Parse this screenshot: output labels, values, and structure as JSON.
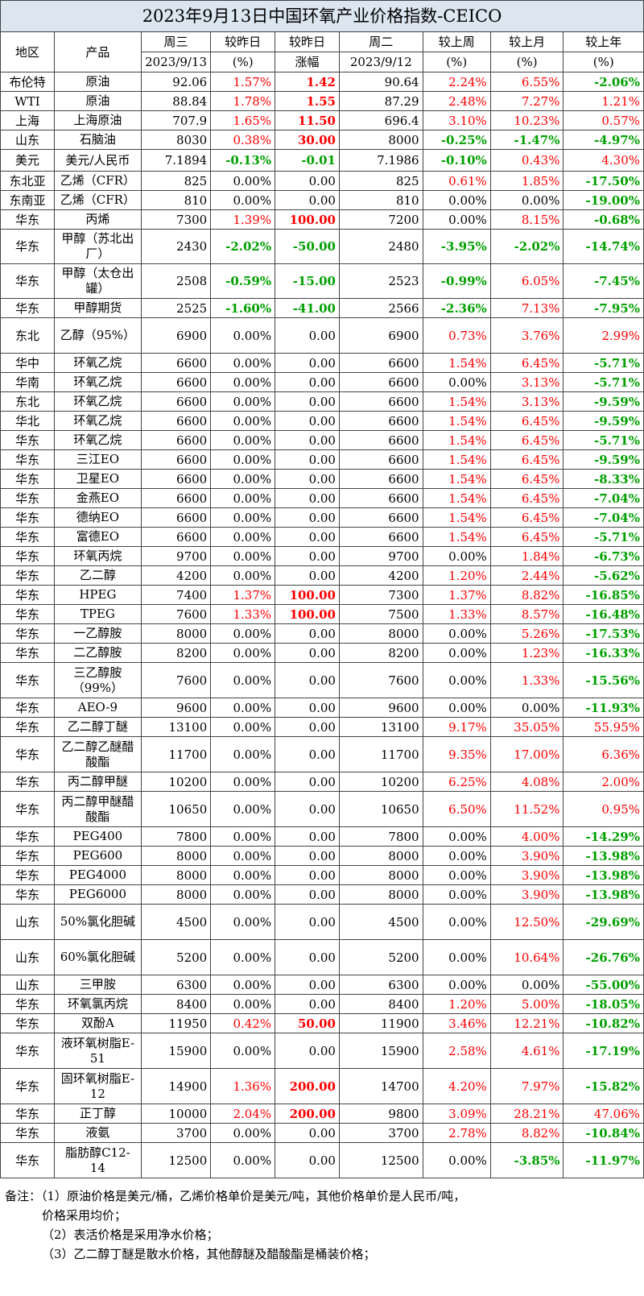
{
  "title": "2023年9月13日中国环氧产业价格指数-CEICO",
  "headers": {
    "region": "地区",
    "product": "产品",
    "today": "周三",
    "today_date": "2023/9/13",
    "chg_pct": "较昨日",
    "chg_pct_unit": "(%)",
    "chg_abs": "较昨日",
    "chg_abs_unit": "涨幅",
    "prev": "周二",
    "prev_date": "2023/9/12",
    "week": "较上周",
    "week_unit": "(%)",
    "month": "较上月",
    "month_unit": "(%)",
    "year": "较上年",
    "year_unit": "(%)"
  },
  "colors": {
    "up": "#ff0000",
    "down": "#00a000",
    "title_bg": "#dbe6f1"
  },
  "rows": [
    {
      "region": "布伦特",
      "product": "原油",
      "today": "92.06",
      "pct": "1.57%",
      "abs": "1.42",
      "prev": "90.64",
      "week": "2.24%",
      "month": "6.55%",
      "year": "-2.06%",
      "h": 24
    },
    {
      "region": "WTI",
      "product": "原油",
      "today": "88.84",
      "pct": "1.78%",
      "abs": "1.55",
      "prev": "87.29",
      "week": "2.48%",
      "month": "7.27%",
      "year": "1.21%",
      "h": 24
    },
    {
      "region": "上海",
      "product": "上海原油",
      "today": "707.9",
      "pct": "1.65%",
      "abs": "11.50",
      "prev": "696.4",
      "week": "3.10%",
      "month": "10.23%",
      "year": "0.57%",
      "h": 24
    },
    {
      "region": "山东",
      "product": "石脑油",
      "today": "8030",
      "pct": "0.38%",
      "abs": "30.00",
      "prev": "8000",
      "week": "-0.25%",
      "month": "-1.47%",
      "year": "-4.97%",
      "h": 24
    },
    {
      "region": "美元",
      "product": "美元/人民币",
      "today": "7.1894",
      "pct": "-0.13%",
      "abs": "-0.01",
      "prev": "7.1986",
      "week": "-0.10%",
      "month": "0.43%",
      "year": "4.30%",
      "h": 27
    },
    {
      "region": "东北亚",
      "product": "乙烯（CFR）",
      "today": "825",
      "pct": "0.00%",
      "abs": "0.00",
      "prev": "825",
      "week": "0.61%",
      "month": "1.85%",
      "year": "-17.50%",
      "h": 24
    },
    {
      "region": "东南亚",
      "product": "乙烯（CFR）",
      "today": "810",
      "pct": "0.00%",
      "abs": "0.00",
      "prev": "810",
      "week": "0.00%",
      "month": "0.00%",
      "year": "-19.00%",
      "h": 24
    },
    {
      "region": "华东",
      "product": "丙烯",
      "today": "7300",
      "pct": "1.39%",
      "abs": "100.00",
      "prev": "7200",
      "week": "0.00%",
      "month": "8.15%",
      "year": "-0.68%",
      "h": 24
    },
    {
      "region": "华东",
      "product": "甲醇（苏北出厂）",
      "today": "2430",
      "pct": "-2.02%",
      "abs": "-50.00",
      "prev": "2480",
      "week": "-3.95%",
      "month": "-2.02%",
      "year": "-14.74%",
      "h": 43
    },
    {
      "region": "华东",
      "product": "甲醇（太仓出罐）",
      "today": "2508",
      "pct": "-0.59%",
      "abs": "-15.00",
      "prev": "2523",
      "week": "-0.99%",
      "month": "6.05%",
      "year": "-7.45%",
      "h": 43
    },
    {
      "region": "华东",
      "product": "甲醇期货",
      "today": "2525",
      "pct": "-1.60%",
      "abs": "-41.00",
      "prev": "2566",
      "week": "-2.36%",
      "month": "7.13%",
      "year": "-7.95%",
      "h": 24
    },
    {
      "region": "东北",
      "product": "乙醇（95%）",
      "today": "6900",
      "pct": "0.00%",
      "abs": "0.00",
      "prev": "6900",
      "week": "0.73%",
      "month": "3.76%",
      "year": "2.99%",
      "h": 44
    },
    {
      "region": "华中",
      "product": "环氧乙烷",
      "today": "6600",
      "pct": "0.00%",
      "abs": "0.00",
      "prev": "6600",
      "week": "1.54%",
      "month": "6.45%",
      "year": "-5.71%",
      "h": 24
    },
    {
      "region": "华南",
      "product": "环氧乙烷",
      "today": "6600",
      "pct": "0.00%",
      "abs": "0.00",
      "prev": "6600",
      "week": "0.00%",
      "month": "3.13%",
      "year": "-5.71%",
      "h": 24
    },
    {
      "region": "东北",
      "product": "环氧乙烷",
      "today": "6600",
      "pct": "0.00%",
      "abs": "0.00",
      "prev": "6600",
      "week": "1.54%",
      "month": "3.13%",
      "year": "-9.59%",
      "h": 24
    },
    {
      "region": "华北",
      "product": "环氧乙烷",
      "today": "6600",
      "pct": "0.00%",
      "abs": "0.00",
      "prev": "6600",
      "week": "1.54%",
      "month": "6.45%",
      "year": "-9.59%",
      "h": 24
    },
    {
      "region": "华东",
      "product": "环氧乙烷",
      "today": "6600",
      "pct": "0.00%",
      "abs": "0.00",
      "prev": "6600",
      "week": "1.54%",
      "month": "6.45%",
      "year": "-5.71%",
      "h": 24
    },
    {
      "region": "华东",
      "product": "三江EO",
      "today": "6600",
      "pct": "0.00%",
      "abs": "0.00",
      "prev": "6600",
      "week": "1.54%",
      "month": "6.45%",
      "year": "-9.59%",
      "h": 24
    },
    {
      "region": "华东",
      "product": "卫星EO",
      "today": "6600",
      "pct": "0.00%",
      "abs": "0.00",
      "prev": "6600",
      "week": "1.54%",
      "month": "6.45%",
      "year": "-8.33%",
      "h": 24
    },
    {
      "region": "华东",
      "product": "金燕EO",
      "today": "6600",
      "pct": "0.00%",
      "abs": "0.00",
      "prev": "6600",
      "week": "1.54%",
      "month": "6.45%",
      "year": "-7.04%",
      "h": 24
    },
    {
      "region": "华东",
      "product": "德纳EO",
      "today": "6600",
      "pct": "0.00%",
      "abs": "0.00",
      "prev": "6600",
      "week": "1.54%",
      "month": "6.45%",
      "year": "-7.04%",
      "h": 24
    },
    {
      "region": "华东",
      "product": "富德EO",
      "today": "6600",
      "pct": "0.00%",
      "abs": "0.00",
      "prev": "6600",
      "week": "1.54%",
      "month": "6.45%",
      "year": "-5.71%",
      "h": 24
    },
    {
      "region": "华东",
      "product": "环氧丙烷",
      "today": "9700",
      "pct": "0.00%",
      "abs": "0.00",
      "prev": "9700",
      "week": "0.00%",
      "month": "1.84%",
      "year": "-6.73%",
      "h": 24
    },
    {
      "region": "华东",
      "product": "乙二醇",
      "today": "4200",
      "pct": "0.00%",
      "abs": "0.00",
      "prev": "4200",
      "week": "1.20%",
      "month": "2.44%",
      "year": "-5.62%",
      "h": 24
    },
    {
      "region": "华东",
      "product": "HPEG",
      "today": "7400",
      "pct": "1.37%",
      "abs": "100.00",
      "prev": "7300",
      "week": "1.37%",
      "month": "8.82%",
      "year": "-16.85%",
      "h": 24
    },
    {
      "region": "华东",
      "product": "TPEG",
      "today": "7600",
      "pct": "1.33%",
      "abs": "100.00",
      "prev": "7500",
      "week": "1.33%",
      "month": "8.57%",
      "year": "-16.48%",
      "h": 24
    },
    {
      "region": "华东",
      "product": "一乙醇胺",
      "today": "8000",
      "pct": "0.00%",
      "abs": "0.00",
      "prev": "8000",
      "week": "0.00%",
      "month": "5.26%",
      "year": "-17.53%",
      "h": 24
    },
    {
      "region": "华东",
      "product": "二乙醇胺",
      "today": "8200",
      "pct": "0.00%",
      "abs": "0.00",
      "prev": "8200",
      "week": "0.00%",
      "month": "1.23%",
      "year": "-16.33%",
      "h": 24
    },
    {
      "region": "华东",
      "product": "三乙醇胺（99%）",
      "today": "7600",
      "pct": "0.00%",
      "abs": "0.00",
      "prev": "7600",
      "week": "0.00%",
      "month": "1.33%",
      "year": "-15.56%",
      "h": 44
    },
    {
      "region": "华东",
      "product": "AEO-9",
      "today": "9600",
      "pct": "0.00%",
      "abs": "0.00",
      "prev": "9600",
      "week": "0.00%",
      "month": "0.00%",
      "year": "-11.93%",
      "h": 24
    },
    {
      "region": "华东",
      "product": "乙二醇丁醚",
      "today": "13100",
      "pct": "0.00%",
      "abs": "0.00",
      "prev": "13100",
      "week": "9.17%",
      "month": "35.05%",
      "year": "55.95%",
      "h": 24
    },
    {
      "region": "华东",
      "product": "乙二醇乙醚醋酸酯",
      "today": "11700",
      "pct": "0.00%",
      "abs": "0.00",
      "prev": "11700",
      "week": "9.35%",
      "month": "17.00%",
      "year": "6.36%",
      "h": 44
    },
    {
      "region": "华东",
      "product": "丙二醇甲醚",
      "today": "10200",
      "pct": "0.00%",
      "abs": "0.00",
      "prev": "10200",
      "week": "6.25%",
      "month": "4.08%",
      "year": "2.00%",
      "h": 24
    },
    {
      "region": "华东",
      "product": "丙二醇甲醚醋酸酯",
      "today": "10650",
      "pct": "0.00%",
      "abs": "0.00",
      "prev": "10650",
      "week": "6.50%",
      "month": "11.52%",
      "year": "0.95%",
      "h": 44
    },
    {
      "region": "华东",
      "product": "PEG400",
      "today": "7800",
      "pct": "0.00%",
      "abs": "0.00",
      "prev": "7800",
      "week": "0.00%",
      "month": "4.00%",
      "year": "-14.29%",
      "h": 24
    },
    {
      "region": "华东",
      "product": "PEG600",
      "today": "8000",
      "pct": "0.00%",
      "abs": "0.00",
      "prev": "8000",
      "week": "0.00%",
      "month": "3.90%",
      "year": "-13.98%",
      "h": 24
    },
    {
      "region": "华东",
      "product": "PEG4000",
      "today": "8000",
      "pct": "0.00%",
      "abs": "0.00",
      "prev": "8000",
      "week": "0.00%",
      "month": "3.90%",
      "year": "-13.98%",
      "h": 24
    },
    {
      "region": "华东",
      "product": "PEG6000",
      "today": "8000",
      "pct": "0.00%",
      "abs": "0.00",
      "prev": "8000",
      "week": "0.00%",
      "month": "3.90%",
      "year": "-13.98%",
      "h": 24
    },
    {
      "region": "山东",
      "product": "50%氯化胆碱",
      "today": "4500",
      "pct": "0.00%",
      "abs": "0.00",
      "prev": "4500",
      "week": "0.00%",
      "month": "12.50%",
      "year": "-29.69%",
      "h": 44
    },
    {
      "region": "山东",
      "product": "60%氯化胆碱",
      "today": "5200",
      "pct": "0.00%",
      "abs": "0.00",
      "prev": "5200",
      "week": "0.00%",
      "month": "10.64%",
      "year": "-26.76%",
      "h": 44
    },
    {
      "region": "山东",
      "product": "三甲胺",
      "today": "6300",
      "pct": "0.00%",
      "abs": "0.00",
      "prev": "6300",
      "week": "0.00%",
      "month": "0.00%",
      "year": "-55.00%",
      "h": 24
    },
    {
      "region": "华东",
      "product": "环氧氯丙烷",
      "today": "8400",
      "pct": "0.00%",
      "abs": "0.00",
      "prev": "8400",
      "week": "1.20%",
      "month": "5.00%",
      "year": "-18.05%",
      "h": 24
    },
    {
      "region": "华东",
      "product": "双酚A",
      "today": "11950",
      "pct": "0.42%",
      "abs": "50.00",
      "prev": "11900",
      "week": "3.46%",
      "month": "12.21%",
      "year": "-10.82%",
      "h": 24
    },
    {
      "region": "华东",
      "product": "液环氧树脂E-51",
      "today": "15900",
      "pct": "0.00%",
      "abs": "0.00",
      "prev": "15900",
      "week": "2.58%",
      "month": "4.61%",
      "year": "-17.19%",
      "h": 44
    },
    {
      "region": "华东",
      "product": "固环氧树脂E-12",
      "today": "14900",
      "pct": "1.36%",
      "abs": "200.00",
      "prev": "14700",
      "week": "4.20%",
      "month": "7.97%",
      "year": "-15.82%",
      "h": 44
    },
    {
      "region": "华东",
      "product": "正丁醇",
      "today": "10000",
      "pct": "2.04%",
      "abs": "200.00",
      "prev": "9800",
      "week": "3.09%",
      "month": "28.21%",
      "year": "47.06%",
      "h": 24
    },
    {
      "region": "华东",
      "product": "液氨",
      "today": "3700",
      "pct": "0.00%",
      "abs": "0.00",
      "prev": "3700",
      "week": "2.78%",
      "month": "8.82%",
      "year": "-10.84%",
      "h": 24
    },
    {
      "region": "华东",
      "product": "脂肪醇C12-14",
      "today": "12500",
      "pct": "0.00%",
      "abs": "0.00",
      "prev": "12500",
      "week": "0.00%",
      "month": "-3.85%",
      "year": "-11.97%",
      "h": 44
    }
  ],
  "notes": [
    "备注：（1）原油价格是美元/桶，乙烯价格单价是美元/吨，其他价格单价是人民币/吨，",
    "价格采用均价；",
    "（2）表活价格是采用净水价格；",
    "（3）乙二醇丁醚是散水价格，其他醇醚及醋酸酯是桶装价格；"
  ]
}
